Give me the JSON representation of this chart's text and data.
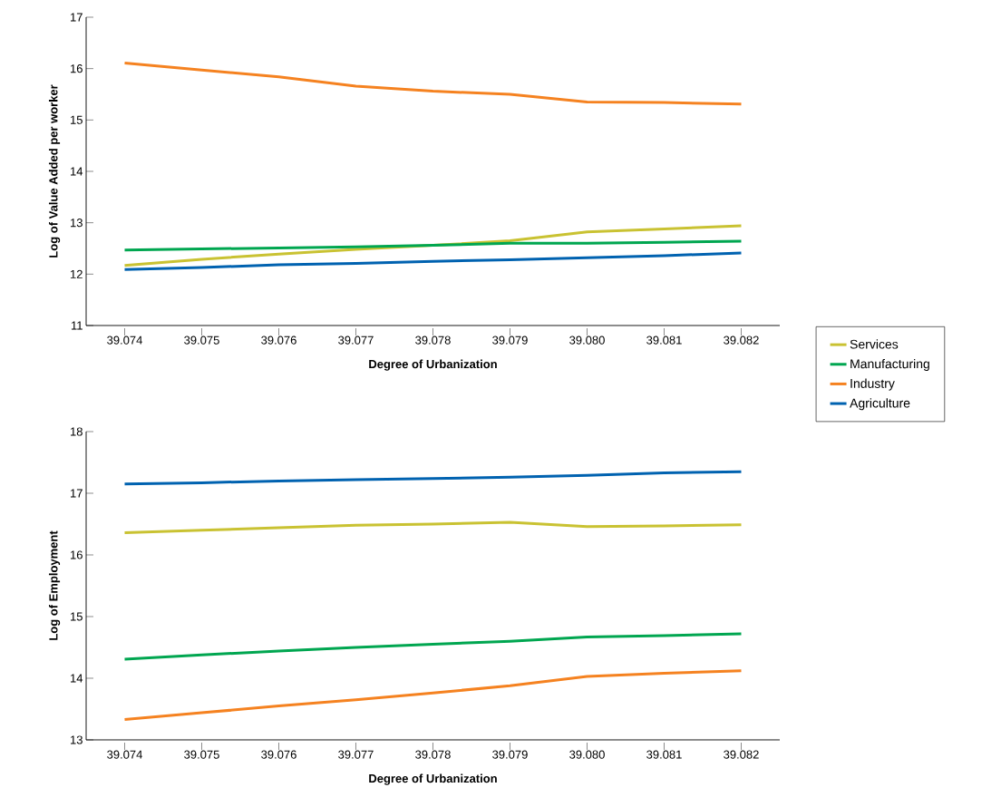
{
  "chart_data": [
    {
      "type": "line",
      "xlabel": "Degree of Urbanization",
      "ylabel": "Log of Value Added per worker",
      "x": [
        39.074,
        39.075,
        39.076,
        39.077,
        39.078,
        39.079,
        39.08,
        39.081,
        39.082
      ],
      "xlim": [
        39.0735,
        39.0825
      ],
      "xticks": [
        39.074,
        39.075,
        39.076,
        39.077,
        39.078,
        39.079,
        {
          "value": 39.08,
          "label": "39.080"
        },
        39.081,
        39.082
      ],
      "ylim": [
        11,
        17
      ],
      "yticks": [
        11,
        12,
        13,
        14,
        15,
        16,
        17
      ],
      "grid": false,
      "legend": "right",
      "line_style": "solid",
      "series": [
        {
          "name": "Services",
          "color": "#c9c232",
          "values": [
            12.17,
            12.29,
            12.39,
            12.48,
            12.56,
            12.65,
            12.82,
            12.88,
            12.94
          ]
        },
        {
          "name": "Manufacturing",
          "color": "#00a650",
          "values": [
            12.47,
            12.49,
            12.51,
            12.53,
            12.56,
            12.6,
            12.6,
            12.62,
            12.64
          ]
        },
        {
          "name": "Industry",
          "color": "#f58220",
          "values": [
            16.11,
            15.97,
            15.84,
            15.66,
            15.56,
            15.5,
            15.35,
            15.34,
            15.31
          ]
        },
        {
          "name": "Agriculture",
          "color": "#0062b0",
          "values": [
            12.09,
            12.13,
            12.18,
            12.21,
            12.25,
            12.28,
            12.32,
            12.36,
            12.41
          ]
        }
      ]
    },
    {
      "type": "line",
      "xlabel": "Degree of Urbanization",
      "ylabel": "Log of Employment",
      "x": [
        39.074,
        39.075,
        39.076,
        39.077,
        39.078,
        39.079,
        39.08,
        39.081,
        39.082
      ],
      "xlim": [
        39.0735,
        39.0825
      ],
      "xticks": [
        39.074,
        39.075,
        39.076,
        39.077,
        39.078,
        39.079,
        {
          "value": 39.08,
          "label": "39.080"
        },
        39.081,
        39.082
      ],
      "ylim": [
        13,
        18
      ],
      "yticks": [
        13,
        14,
        15,
        16,
        17,
        18
      ],
      "grid": false,
      "line_style": "solid",
      "series": [
        {
          "color": "#c9c232",
          "values": [
            16.36,
            16.4,
            16.44,
            16.48,
            16.5,
            16.53,
            16.46,
            16.47,
            16.49
          ]
        },
        {
          "color": "#00a650",
          "values": [
            14.31,
            14.38,
            14.44,
            14.5,
            14.55,
            14.6,
            14.67,
            14.69,
            14.72
          ]
        },
        {
          "color": "#f58220",
          "values": [
            13.33,
            13.44,
            13.55,
            13.65,
            13.76,
            13.88,
            14.03,
            14.08,
            14.12
          ]
        },
        {
          "color": "#0062b0",
          "values": [
            17.15,
            17.17,
            17.2,
            17.22,
            17.24,
            17.26,
            17.29,
            17.33,
            17.35
          ]
        }
      ]
    }
  ]
}
